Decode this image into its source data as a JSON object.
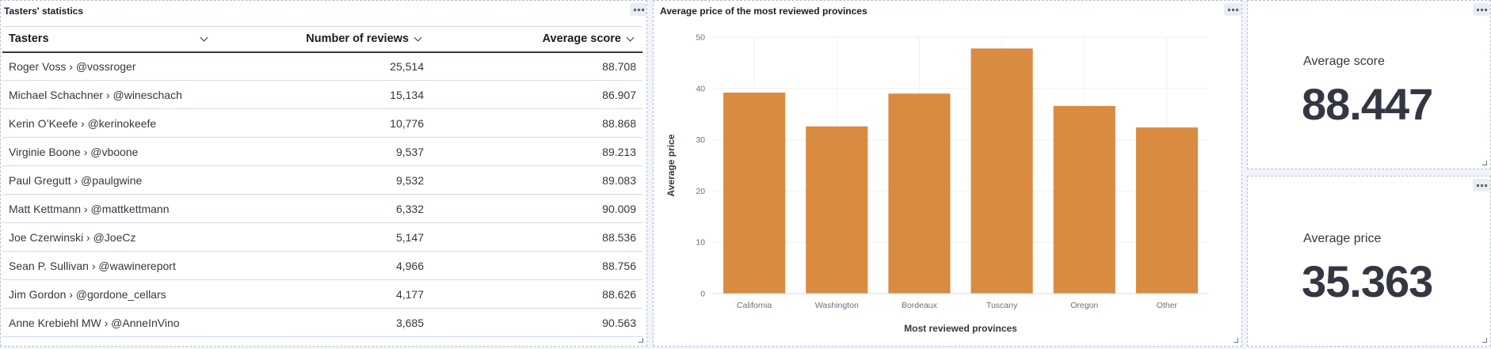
{
  "tasters_panel": {
    "title": "Tasters' statistics",
    "columns": [
      "Tasters",
      "Number of reviews",
      "Average score"
    ],
    "rows": [
      [
        "Roger Voss › @vossroger",
        "25,514",
        "88.708"
      ],
      [
        "Michael Schachner › @wineschach",
        "15,134",
        "86.907"
      ],
      [
        "Kerin O’Keefe › @kerinokeefe",
        "10,776",
        "88.868"
      ],
      [
        "Virginie Boone › @vboone",
        "9,537",
        "89.213"
      ],
      [
        "Paul Gregutt › @paulgwine",
        "9,532",
        "89.083"
      ],
      [
        "Matt Kettmann › @mattkettmann",
        "6,332",
        "90.009"
      ],
      [
        "Joe Czerwinski › @JoeCz",
        "5,147",
        "88.536"
      ],
      [
        "Sean P. Sullivan › @wawinereport",
        "4,966",
        "88.756"
      ],
      [
        "Jim Gordon › @gordone_cellars",
        "4,177",
        "88.626"
      ],
      [
        "Anne Krebiehl MW › @AnneInVino",
        "3,685",
        "90.563"
      ]
    ]
  },
  "chart_panel": {
    "title": "Average price of the most reviewed provinces"
  },
  "chart_data": {
    "type": "bar",
    "title": "Average price of the most reviewed provinces",
    "categories": [
      "California",
      "Washington",
      "Bordeaux",
      "Tuscany",
      "Oregon",
      "Other"
    ],
    "values": [
      39.2,
      32.6,
      39.0,
      47.8,
      36.6,
      32.4
    ],
    "xlabel": "Most reviewed provinces",
    "ylabel": "Average price",
    "ylim": [
      0,
      50
    ],
    "yticks": [
      "0",
      "10",
      "20",
      "30",
      "40",
      "50"
    ],
    "grid": true,
    "bar_color": "#d98b42"
  },
  "metric_score": {
    "label": "Average score",
    "value": "88.447"
  },
  "metric_price": {
    "label": "Average price",
    "value": "35.363"
  }
}
